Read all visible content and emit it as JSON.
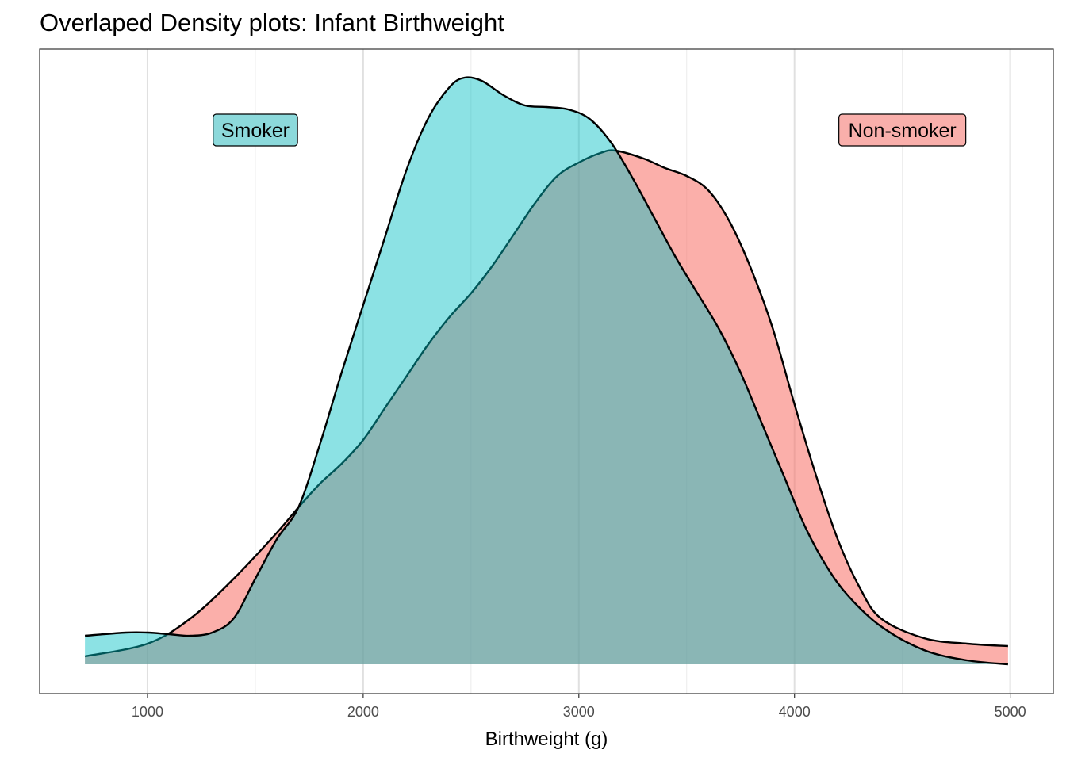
{
  "chart_data": {
    "type": "area",
    "title": "Overlaped Density plots: Infant Birthweight",
    "xlabel": "Birthweight (g)",
    "ylabel": "",
    "xlim": [
      500,
      5200
    ],
    "ylim": [
      -3.7e-05,
      0.000776
    ],
    "x_ticks": [
      1000,
      2000,
      3000,
      4000,
      5000
    ],
    "x_tick_labels": [
      "1000",
      "2000",
      "3000",
      "4000",
      "5000"
    ],
    "x_minor_ticks": [
      1500,
      2500,
      3500,
      4500
    ],
    "y_ticks_shown": false,
    "grid": "vertical major and minor",
    "legend": "none",
    "series": [
      {
        "key": "nonsmoker",
        "color": "#F8766D",
        "x": [
          710,
          1000,
          1200,
          1400,
          1600,
          1700,
          1800,
          1900,
          2000,
          2100,
          2200,
          2300,
          2400,
          2500,
          2600,
          2700,
          2800,
          2900,
          3000,
          3100,
          3170,
          3300,
          3400,
          3500,
          3600,
          3700,
          3800,
          3900,
          4000,
          4100,
          4200,
          4300,
          4400,
          4600,
          4800,
          4990
        ],
        "y": [
          1e-05,
          2.6e-05,
          5.8e-05,
          0.000108,
          0.000166,
          0.000198,
          0.000228,
          0.000253,
          0.000283,
          0.000323,
          0.000363,
          0.000403,
          0.000438,
          0.000468,
          0.000503,
          0.000543,
          0.000583,
          0.000616,
          0.000633,
          0.000645,
          0.000648,
          0.000638,
          0.000626,
          0.000616,
          0.000598,
          0.000558,
          0.000498,
          0.000423,
          0.000328,
          0.000238,
          0.000158,
          9.8e-05,
          5.8e-05,
          3.3e-05,
          2.6e-05,
          2.3e-05
        ]
      },
      {
        "key": "smoker",
        "color": "#00BFC4",
        "x": [
          710,
          900,
          1000,
          1100,
          1200,
          1300,
          1400,
          1500,
          1600,
          1700,
          1800,
          1900,
          2000,
          2100,
          2200,
          2300,
          2400,
          2470,
          2550,
          2650,
          2750,
          2850,
          2950,
          3050,
          3150,
          3250,
          3350,
          3450,
          3550,
          3650,
          3750,
          3850,
          3950,
          4050,
          4150,
          4250,
          4400,
          4600,
          4800,
          4990
        ],
        "y": [
          3.6e-05,
          4e-05,
          4e-05,
          3.8e-05,
          3.6e-05,
          4e-05,
          5.8e-05,
          0.000108,
          0.000158,
          0.000198,
          0.000278,
          0.000368,
          0.000453,
          0.000538,
          0.000623,
          0.000688,
          0.000728,
          0.00074,
          0.000736,
          0.000718,
          0.000705,
          0.000703,
          0.0007,
          0.000688,
          0.000658,
          0.000613,
          0.000563,
          0.000513,
          0.000468,
          0.000423,
          0.000368,
          0.000303,
          0.000238,
          0.000173,
          0.000123,
          8.6e-05,
          4.8e-05,
          1.8e-05,
          5e-06,
          0
        ]
      }
    ],
    "annotations": [
      {
        "text": "Smoker",
        "x": 1500,
        "y": 0.000674,
        "fill": "#8CD9DB"
      },
      {
        "text": "Non-smoker",
        "x": 4500,
        "y": 0.000674,
        "fill": "#F9AFAB"
      }
    ]
  }
}
